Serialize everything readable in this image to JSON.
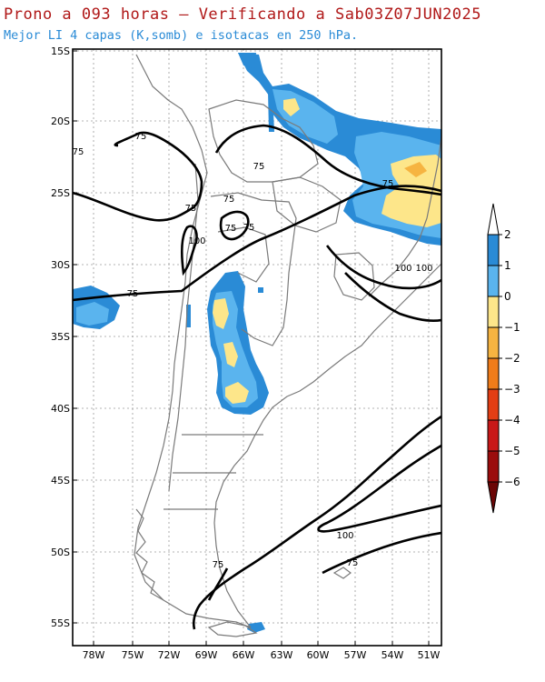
{
  "header": {
    "title": "Prono a 093 horas — Verificando a Sab03Z07JUN2025",
    "subtitle": "Mejor LI 4 capas (K,somb) e isotacas en 250 hPa."
  },
  "map": {
    "lat_ticks": [
      "15S",
      "20S",
      "25S",
      "30S",
      "35S",
      "40S",
      "45S",
      "50S",
      "55S"
    ],
    "lon_ticks": [
      "78W",
      "75W",
      "72W",
      "69W",
      "66W",
      "63W",
      "60W",
      "57W",
      "54W",
      "51W"
    ],
    "contour_labels": [
      {
        "text": "75"
      },
      {
        "text": "75"
      },
      {
        "text": "75"
      },
      {
        "text": "75"
      },
      {
        "text": "75"
      },
      {
        "text": "75"
      },
      {
        "text": "75"
      },
      {
        "text": "75"
      },
      {
        "text": "75"
      },
      {
        "text": "100"
      },
      {
        "text": "100"
      },
      {
        "text": "100"
      },
      {
        "text": "100"
      },
      {
        "text": "75"
      },
      {
        "text": "75"
      }
    ],
    "line_color": "#000000",
    "coast_color": "#7a7a7a"
  },
  "colorbar": {
    "labels": [
      "2",
      "1",
      "0",
      "−1",
      "−2",
      "−3",
      "−4",
      "−5",
      "−6"
    ],
    "colors": [
      "#ffffff",
      "#2a8bd6",
      "#5ab4ee",
      "#fde68a",
      "#f6b441",
      "#f07c1a",
      "#e33e14",
      "#c81818",
      "#9b0d0d",
      "#6b0606"
    ]
  }
}
